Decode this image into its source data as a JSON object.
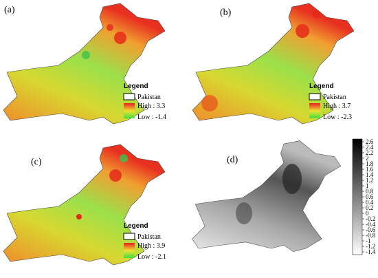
{
  "panels": [
    {
      "label": "(a)",
      "legend_title": "Legend",
      "legend_entry": "Pakistan",
      "high": "High : 3.3",
      "low": "Low : -1.4"
    },
    {
      "label": "(b)",
      "legend_title": "Legend",
      "legend_entry": "Pakistan",
      "high": "High : 3.7",
      "low": "Low : -2.3"
    },
    {
      "label": "(c)",
      "legend_title": "Legend",
      "legend_entry": "Pakistan",
      "high": "High : 3.9",
      "low": "Low : -2.1"
    },
    {
      "label": "(d)",
      "colorbar_ticks": [
        2.6,
        2.4,
        2.2,
        2,
        1.8,
        1.6,
        1.4,
        1.2,
        1,
        0.8,
        0.6,
        0.4,
        0.2,
        0,
        -0.2,
        -0.4,
        -0.6,
        -0.8,
        -1,
        -1.2,
        -1.4
      ]
    }
  ]
}
